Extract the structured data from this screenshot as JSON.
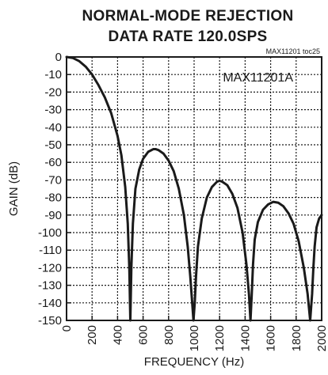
{
  "chart_data": {
    "type": "line",
    "title": "NORMAL-MODE REJECTION",
    "subtitle": "DATA RATE 120.0SPS",
    "xlabel": "FREQUENCY (Hz)",
    "ylabel": "GAIN (dB)",
    "xlim": [
      0,
      2000
    ],
    "ylim": [
      -150,
      0
    ],
    "x_ticks": [
      "0",
      "200",
      "400",
      "600",
      "800",
      "1000",
      "1200",
      "1400",
      "1600",
      "1800",
      "2000"
    ],
    "y_ticks": [
      "0",
      "-10",
      "-20",
      "-30",
      "-40",
      "-50",
      "-60",
      "-70",
      "-80",
      "-90",
      "-100",
      "-110",
      "-120",
      "-130",
      "-140",
      "-150"
    ],
    "grid": true,
    "figure_code": "MAX11201 toc25",
    "series": [
      {
        "name": "MAX11201A",
        "color": "#1a1a1a",
        "x": [
          0,
          50,
          100,
          150,
          200,
          250,
          300,
          350,
          400,
          430,
          460,
          480,
          492,
          500,
          508,
          520,
          540,
          570,
          600,
          640,
          680,
          700,
          720,
          760,
          800,
          840,
          880,
          920,
          950,
          970,
          985,
          995,
          1005,
          1015,
          1030,
          1060,
          1100,
          1140,
          1180,
          1200,
          1220,
          1260,
          1300,
          1340,
          1380,
          1410,
          1430,
          1442,
          1452,
          1462,
          1475,
          1500,
          1540,
          1580,
          1620,
          1660,
          1700,
          1740,
          1780,
          1820,
          1860,
          1890,
          1910,
          1925,
          1935,
          1945,
          1960,
          1980,
          2000
        ],
        "values": [
          0,
          -0.6,
          -2.4,
          -5.5,
          -10.0,
          -16,
          -23,
          -32,
          -45,
          -56,
          -74,
          -95,
          -120,
          -150,
          -120,
          -95,
          -75,
          -64,
          -58,
          -54,
          -52.5,
          -52.5,
          -53,
          -55,
          -59,
          -65,
          -75,
          -90,
          -108,
          -125,
          -140,
          -150,
          -140,
          -125,
          -108,
          -92,
          -80,
          -74,
          -71,
          -70.5,
          -71,
          -73,
          -78,
          -86,
          -100,
          -118,
          -135,
          -150,
          -135,
          -118,
          -104,
          -94,
          -87,
          -84,
          -82.5,
          -83,
          -85,
          -89,
          -95,
          -105,
          -120,
          -135,
          -150,
          -135,
          -120,
          -108,
          -97,
          -92,
          -90
        ]
      }
    ]
  }
}
